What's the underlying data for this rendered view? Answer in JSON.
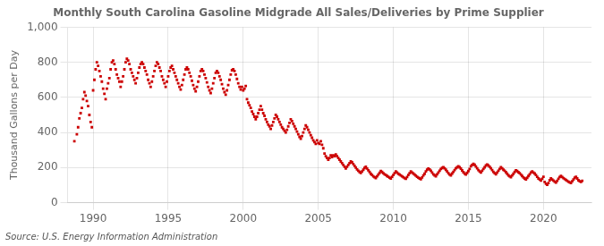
{
  "chart_data": {
    "type": "scatter",
    "title": "Monthly South Carolina Gasoline Midgrade All Sales/Deliveries by Prime Supplier",
    "ylabel": "Thousand Gallons per Day",
    "source": "Source: U.S. Energy Information Administration",
    "color": "#cc0000",
    "marker": "square",
    "grid": true,
    "xlim": [
      1988.3,
      2023.2
    ],
    "xticks": [
      1990,
      1995,
      2000,
      2005,
      2010,
      2015,
      2020
    ],
    "ylim": [
      0,
      1000
    ],
    "yticks": [
      0,
      200,
      400,
      600,
      800,
      {
        "value": 1000,
        "label": "1,000"
      }
    ],
    "x": [
      1988.75,
      1988.917,
      1989.0,
      1989.083,
      1989.167,
      1989.25,
      1989.333,
      1989.417,
      1989.5,
      1989.583,
      1989.667,
      1989.75,
      1989.833,
      1989.917,
      1990.0,
      1990.083,
      1990.167,
      1990.25,
      1990.333,
      1990.417,
      1990.5,
      1990.583,
      1990.667,
      1990.75,
      1990.833,
      1990.917,
      1991.0,
      1991.083,
      1991.167,
      1991.25,
      1991.333,
      1991.417,
      1991.5,
      1991.583,
      1991.667,
      1991.75,
      1991.833,
      1991.917,
      1992.0,
      1992.083,
      1992.167,
      1992.25,
      1992.333,
      1992.417,
      1992.5,
      1992.583,
      1992.667,
      1992.75,
      1992.833,
      1992.917,
      1993.0,
      1993.083,
      1993.167,
      1993.25,
      1993.333,
      1993.417,
      1993.5,
      1993.583,
      1993.667,
      1993.75,
      1993.833,
      1993.917,
      1994.0,
      1994.083,
      1994.167,
      1994.25,
      1994.333,
      1994.417,
      1994.5,
      1994.583,
      1994.667,
      1994.75,
      1994.833,
      1994.917,
      1995.0,
      1995.083,
      1995.167,
      1995.25,
      1995.333,
      1995.417,
      1995.5,
      1995.583,
      1995.667,
      1995.75,
      1995.833,
      1995.917,
      1996.0,
      1996.083,
      1996.167,
      1996.25,
      1996.333,
      1996.417,
      1996.5,
      1996.583,
      1996.667,
      1996.75,
      1996.833,
      1996.917,
      1997.0,
      1997.083,
      1997.167,
      1997.25,
      1997.333,
      1997.417,
      1997.5,
      1997.583,
      1997.667,
      1997.75,
      1997.833,
      1997.917,
      1998.0,
      1998.083,
      1998.167,
      1998.25,
      1998.333,
      1998.417,
      1998.5,
      1998.583,
      1998.667,
      1998.75,
      1998.833,
      1998.917,
      1999.0,
      1999.083,
      1999.167,
      1999.25,
      1999.333,
      1999.417,
      1999.5,
      1999.583,
      1999.667,
      1999.75,
      1999.833,
      1999.917,
      2000.0,
      2000.083,
      2000.167,
      2000.25,
      2000.333,
      2000.417,
      2000.5,
      2000.583,
      2000.667,
      2000.75,
      2000.833,
      2000.917,
      2001.0,
      2001.083,
      2001.167,
      2001.25,
      2001.333,
      2001.417,
      2001.5,
      2001.583,
      2001.667,
      2001.75,
      2001.833,
      2001.917,
      2002.0,
      2002.083,
      2002.167,
      2002.25,
      2002.333,
      2002.417,
      2002.5,
      2002.583,
      2002.667,
      2002.75,
      2002.833,
      2002.917,
      2003.0,
      2003.083,
      2003.167,
      2003.25,
      2003.333,
      2003.417,
      2003.5,
      2003.583,
      2003.667,
      2003.75,
      2003.833,
      2003.917,
      2004.0,
      2004.083,
      2004.167,
      2004.25,
      2004.333,
      2004.417,
      2004.5,
      2004.583,
      2004.667,
      2004.75,
      2004.833,
      2004.917,
      2005.0,
      2005.083,
      2005.167,
      2005.25,
      2005.333,
      2005.417,
      2005.5,
      2005.583,
      2005.667,
      2005.75,
      2005.833,
      2005.917,
      2006.0,
      2006.083,
      2006.167,
      2006.25,
      2006.333,
      2006.417,
      2006.5,
      2006.583,
      2006.667,
      2006.75,
      2006.833,
      2006.917,
      2007.0,
      2007.083,
      2007.167,
      2007.25,
      2007.333,
      2007.417,
      2007.5,
      2007.583,
      2007.667,
      2007.75,
      2007.833,
      2007.917,
      2008.0,
      2008.083,
      2008.167,
      2008.25,
      2008.333,
      2008.417,
      2008.5,
      2008.583,
      2008.667,
      2008.75,
      2008.833,
      2008.917,
      2009.0,
      2009.083,
      2009.167,
      2009.25,
      2009.333,
      2009.417,
      2009.5,
      2009.583,
      2009.667,
      2009.75,
      2009.833,
      2009.917,
      2010.0,
      2010.083,
      2010.167,
      2010.25,
      2010.333,
      2010.417,
      2010.5,
      2010.583,
      2010.667,
      2010.75,
      2010.833,
      2010.917,
      2011.0,
      2011.083,
      2011.167,
      2011.25,
      2011.333,
      2011.417,
      2011.5,
      2011.583,
      2011.667,
      2011.75,
      2011.833,
      2011.917,
      2012.0,
      2012.083,
      2012.167,
      2012.25,
      2012.333,
      2012.417,
      2012.5,
      2012.583,
      2012.667,
      2012.75,
      2012.833,
      2012.917,
      2013.0,
      2013.083,
      2013.167,
      2013.25,
      2013.333,
      2013.417,
      2013.5,
      2013.583,
      2013.667,
      2013.75,
      2013.833,
      2013.917,
      2014.0,
      2014.083,
      2014.167,
      2014.25,
      2014.333,
      2014.417,
      2014.5,
      2014.583,
      2014.667,
      2014.75,
      2014.833,
      2014.917,
      2015.0,
      2015.083,
      2015.167,
      2015.25,
      2015.333,
      2015.417,
      2015.5,
      2015.583,
      2015.667,
      2015.75,
      2015.833,
      2015.917,
      2016.0,
      2016.083,
      2016.167,
      2016.25,
      2016.333,
      2016.417,
      2016.5,
      2016.583,
      2016.667,
      2016.75,
      2016.833,
      2016.917,
      2017.0,
      2017.083,
      2017.167,
      2017.25,
      2017.333,
      2017.417,
      2017.5,
      2017.583,
      2017.667,
      2017.75,
      2017.833,
      2017.917,
      2018.0,
      2018.083,
      2018.167,
      2018.25,
      2018.333,
      2018.417,
      2018.5,
      2018.583,
      2018.667,
      2018.75,
      2018.833,
      2018.917,
      2019.0,
      2019.083,
      2019.167,
      2019.25,
      2019.333,
      2019.417,
      2019.5,
      2019.583,
      2019.667,
      2019.75,
      2019.833,
      2019.917,
      2020.0,
      2020.083,
      2020.167,
      2020.25,
      2020.333,
      2020.417,
      2020.5,
      2020.583,
      2020.667,
      2020.75,
      2020.833,
      2020.917,
      2021.0,
      2021.083,
      2021.167,
      2021.25,
      2021.333,
      2021.417,
      2021.5,
      2021.583,
      2021.667,
      2021.75,
      2021.833,
      2021.917,
      2022.0,
      2022.083,
      2022.167,
      2022.25,
      2022.333,
      2022.417,
      2022.5,
      2022.583
    ],
    "values": [
      350,
      390,
      430,
      480,
      510,
      540,
      590,
      630,
      610,
      580,
      550,
      500,
      460,
      430,
      640,
      700,
      760,
      800,
      780,
      750,
      720,
      690,
      650,
      620,
      590,
      650,
      680,
      710,
      760,
      800,
      810,
      790,
      760,
      730,
      710,
      690,
      660,
      690,
      720,
      760,
      800,
      820,
      810,
      790,
      760,
      740,
      720,
      700,
      680,
      710,
      740,
      770,
      790,
      800,
      790,
      770,
      750,
      730,
      700,
      680,
      660,
      690,
      720,
      750,
      780,
      800,
      790,
      770,
      750,
      720,
      700,
      680,
      660,
      690,
      720,
      750,
      770,
      780,
      760,
      740,
      720,
      700,
      680,
      660,
      645,
      670,
      700,
      730,
      760,
      770,
      760,
      740,
      720,
      695,
      670,
      650,
      635,
      660,
      690,
      720,
      750,
      760,
      750,
      730,
      710,
      685,
      660,
      640,
      625,
      650,
      680,
      710,
      740,
      750,
      740,
      720,
      700,
      675,
      650,
      630,
      615,
      640,
      670,
      700,
      730,
      755,
      760,
      750,
      730,
      705,
      680,
      660,
      645,
      660,
      640,
      650,
      665,
      590,
      570,
      555,
      540,
      520,
      505,
      490,
      475,
      490,
      510,
      530,
      550,
      530,
      510,
      495,
      475,
      460,
      445,
      435,
      420,
      440,
      460,
      480,
      500,
      490,
      475,
      460,
      445,
      430,
      420,
      410,
      400,
      415,
      435,
      455,
      475,
      465,
      450,
      435,
      420,
      405,
      390,
      375,
      365,
      380,
      400,
      420,
      440,
      430,
      415,
      400,
      385,
      370,
      355,
      345,
      335,
      355,
      340,
      335,
      350,
      330,
      310,
      280,
      265,
      255,
      245,
      255,
      270,
      260,
      270,
      265,
      275,
      265,
      255,
      245,
      235,
      225,
      215,
      205,
      195,
      205,
      215,
      225,
      235,
      230,
      220,
      210,
      200,
      190,
      182,
      175,
      170,
      178,
      188,
      198,
      205,
      195,
      185,
      175,
      165,
      158,
      150,
      145,
      140,
      150,
      160,
      170,
      180,
      175,
      168,
      162,
      158,
      152,
      148,
      143,
      138,
      148,
      158,
      168,
      178,
      172,
      165,
      160,
      155,
      150,
      145,
      140,
      136,
      146,
      158,
      168,
      178,
      172,
      166,
      160,
      154,
      148,
      143,
      138,
      134,
      144,
      155,
      165,
      178,
      188,
      195,
      190,
      182,
      172,
      162,
      156,
      150,
      162,
      172,
      182,
      192,
      198,
      202,
      196,
      188,
      178,
      168,
      160,
      155,
      166,
      176,
      186,
      196,
      202,
      208,
      202,
      194,
      184,
      174,
      166,
      160,
      170,
      180,
      192,
      208,
      215,
      222,
      216,
      206,
      196,
      186,
      178,
      172,
      182,
      192,
      202,
      212,
      218,
      212,
      205,
      196,
      186,
      176,
      168,
      162,
      172,
      182,
      192,
      202,
      196,
      188,
      182,
      174,
      165,
      156,
      150,
      145,
      155,
      165,
      175,
      185,
      180,
      174,
      168,
      160,
      152,
      144,
      138,
      132,
      142,
      152,
      162,
      172,
      178,
      172,
      166,
      158,
      148,
      138,
      132,
      126,
      136,
      148,
      118,
      108,
      102,
      112,
      128,
      138,
      132,
      126,
      120,
      115,
      125,
      136,
      146,
      152,
      146,
      140,
      135,
      130,
      125,
      120,
      116,
      112,
      122,
      132,
      142,
      148,
      138,
      128,
      122,
      118,
      125
    ]
  }
}
